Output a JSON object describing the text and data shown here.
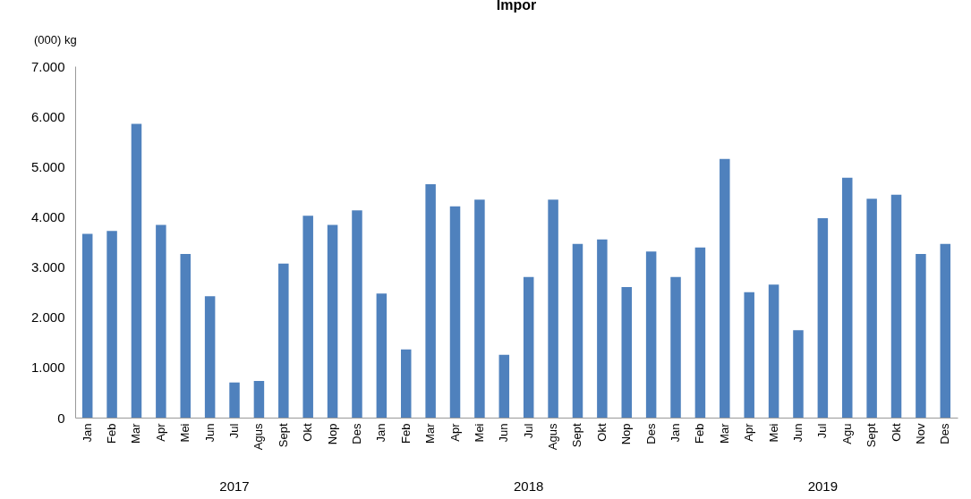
{
  "chart_data": {
    "type": "bar",
    "title": "Impor",
    "ylabel": "(000) kg",
    "categories": [
      "Jan",
      "Feb",
      "Mar",
      "Apr",
      "Mei",
      "Jun",
      "Jul",
      "Agus",
      "Sept",
      "Okt",
      "Nop",
      "Des",
      "Jan",
      "Feb",
      "Mar",
      "Apr",
      "Mei",
      "Jun",
      "Jul",
      "Agus",
      "Sept",
      "Okt",
      "Nop",
      "Des",
      "Jan",
      "Feb",
      "Mar",
      "Apr",
      "Mei",
      "Jun",
      "Jul",
      "Agu",
      "Sept",
      "Okt",
      "Nov",
      "Des"
    ],
    "values": [
      3660,
      3720,
      5850,
      3840,
      3260,
      2420,
      700,
      730,
      3070,
      4020,
      3840,
      4130,
      2470,
      1360,
      4650,
      4210,
      4340,
      1250,
      2800,
      4340,
      3460,
      3550,
      2600,
      3310,
      2800,
      3390,
      5150,
      2500,
      2650,
      1740,
      3970,
      4780,
      4360,
      4440,
      3260,
      3460
    ],
    "color": "#4f81bd",
    "ylim": [
      0,
      7000
    ],
    "yticks": [
      0,
      {
        "value": 1000,
        "label": "1.000"
      },
      {
        "value": 2000,
        "label": "2.000"
      },
      {
        "value": 3000,
        "label": "3.000"
      },
      {
        "value": 4000,
        "label": "4.000"
      },
      {
        "value": 5000,
        "label": "5.000"
      },
      {
        "value": 6000,
        "label": "6.000"
      },
      {
        "value": 7000,
        "label": "7.000"
      }
    ],
    "grid": false,
    "annotations": [
      "2017",
      "2018",
      "2019"
    ]
  }
}
